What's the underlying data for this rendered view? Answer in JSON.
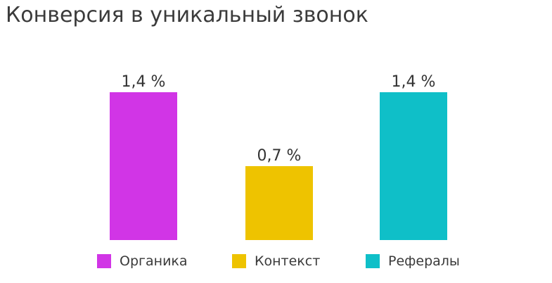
{
  "chart_data": {
    "type": "bar",
    "title": "Конверсия в уникальный звонок",
    "categories": [
      "Органика",
      "Контекст",
      "Рефералы"
    ],
    "values": [
      1.4,
      0.7,
      1.4
    ],
    "value_labels": [
      "1,4 %",
      "0,7 %",
      "1,4 %"
    ],
    "colors": [
      "#d135e6",
      "#eec300",
      "#0fbfc8"
    ],
    "ylim": [
      0,
      1.4
    ],
    "xlabel": "",
    "ylabel": "",
    "grid": false,
    "legend": "bottom",
    "axes_visible": false
  }
}
